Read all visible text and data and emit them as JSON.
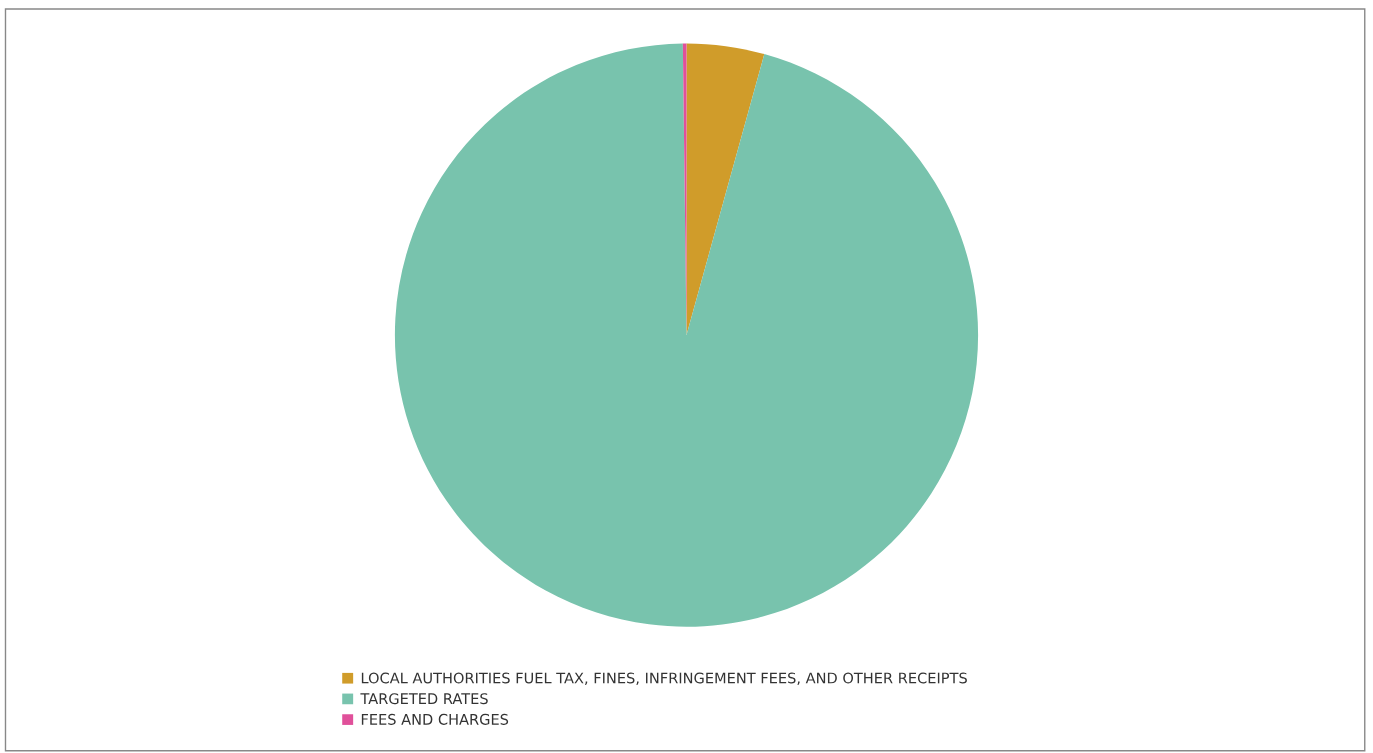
{
  "chart_data": {
    "type": "pie",
    "categories": [
      "LOCAL AUTHORITIES FUEL TAX, FINES, INFRINGEMENT FEES, AND OTHER RECEIPTS",
      "TARGETED RATES",
      "FEES AND CHARGES"
    ],
    "values": [
      4.3,
      95.5,
      0.2
    ],
    "colors": [
      "#d09c2a",
      "#78c3ad",
      "#e0509a"
    ],
    "legend": "bottom"
  }
}
